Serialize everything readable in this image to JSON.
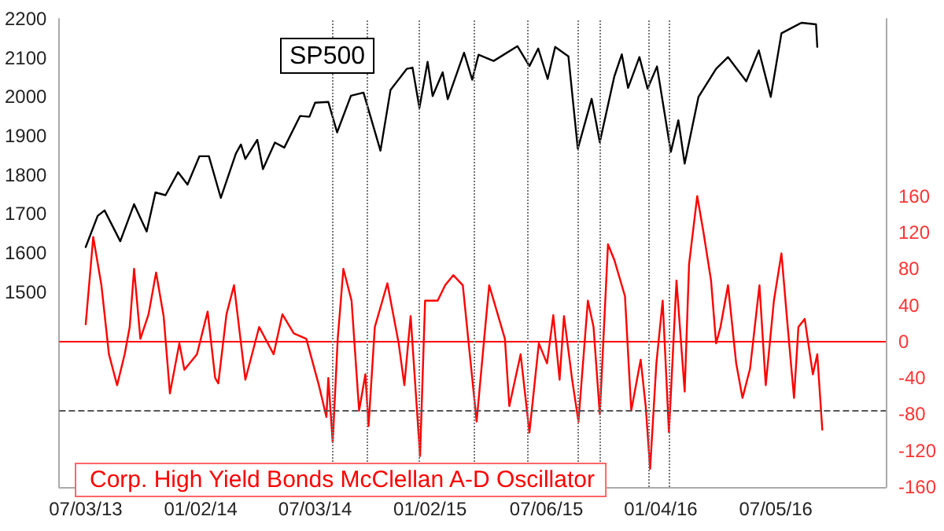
{
  "chart_data": {
    "type": "line",
    "xlim": [
      "2013-05-22",
      "2016-12-27"
    ],
    "xticks": [
      {
        "value": "2013-07-03",
        "label": "07/03/13"
      },
      {
        "value": "2014-01-02",
        "label": "01/02/14"
      },
      {
        "value": "2014-07-03",
        "label": "07/03/14"
      },
      {
        "value": "2015-01-02",
        "label": "01/02/15"
      },
      {
        "value": "2015-07-06",
        "label": "07/06/15"
      },
      {
        "value": "2016-01-04",
        "label": "01/04/16"
      },
      {
        "value": "2016-07-05",
        "label": "07/05/16"
      }
    ],
    "ylim": [
      1000,
      2200
    ],
    "yticks": [
      1500,
      1600,
      1700,
      1800,
      1900,
      2000,
      2100,
      2200
    ],
    "y2lim": [
      -160,
      355
    ],
    "y2ticks": [
      -160,
      -120,
      -80,
      -40,
      0,
      40,
      80,
      120,
      160
    ],
    "grid": false,
    "legend": "bottom left",
    "marker": "none",
    "line_style": "solid",
    "series": [
      {
        "name": "SP500",
        "color": "#000000",
        "x": [
          "2013-07-03",
          "2013-07-22",
          "2013-08-02",
          "2013-08-27",
          "2013-09-18",
          "2013-10-08",
          "2013-10-22",
          "2013-11-07",
          "2013-11-27",
          "2013-12-12",
          "2013-12-31",
          "2014-01-15",
          "2014-02-03",
          "2014-02-27",
          "2014-03-07",
          "2014-03-14",
          "2014-04-02",
          "2014-04-11",
          "2014-04-30",
          "2014-05-15",
          "2014-06-09",
          "2014-06-24",
          "2014-07-03",
          "2014-07-24",
          "2014-08-07",
          "2014-08-29",
          "2014-09-18",
          "2014-10-15",
          "2014-10-31",
          "2014-11-26",
          "2014-12-05",
          "2014-12-16",
          "2014-12-29",
          "2015-01-06",
          "2015-01-22",
          "2015-01-30",
          "2015-02-25",
          "2015-03-10",
          "2015-03-20",
          "2015-04-13",
          "2015-05-21",
          "2015-06-09",
          "2015-06-23",
          "2015-07-08",
          "2015-07-20",
          "2015-08-10",
          "2015-08-25",
          "2015-09-16",
          "2015-09-29",
          "2015-10-22",
          "2015-11-03",
          "2015-11-13",
          "2015-12-01",
          "2015-12-14",
          "2015-12-29",
          "2016-01-20",
          "2016-02-01",
          "2016-02-11",
          "2016-03-04",
          "2016-04-01",
          "2016-04-20",
          "2016-05-19",
          "2016-06-08",
          "2016-06-27",
          "2016-07-14",
          "2016-08-15",
          "2016-09-07",
          "2016-09-09"
        ],
        "values": [
          1615,
          1695,
          1709,
          1630,
          1725,
          1655,
          1755,
          1748,
          1807,
          1775,
          1848,
          1848,
          1741,
          1855,
          1878,
          1841,
          1890,
          1815,
          1883,
          1870,
          1951,
          1949,
          1985,
          1987,
          1909,
          2003,
          2011,
          1862,
          2018,
          2072,
          2075,
          1972,
          2090,
          2002,
          2063,
          1994,
          2113,
          2044,
          2108,
          2092,
          2130,
          2079,
          2124,
          2046,
          2128,
          2104,
          1867,
          1995,
          1884,
          2052,
          2109,
          2023,
          2102,
          2021,
          2078,
          1859,
          1940,
          1829,
          2000,
          2072,
          2102,
          2040,
          2119,
          2000,
          2163,
          2190,
          2186,
          2128
        ]
      },
      {
        "name": "Corp. High Yield Bonds McClellan A-D Oscillator",
        "color": "#ff0000",
        "axis": "y2",
        "x": [
          "2013-07-03",
          "2013-07-15",
          "2013-07-28",
          "2013-08-09",
          "2013-08-22",
          "2013-09-03",
          "2013-09-11",
          "2013-09-18",
          "2013-09-28",
          "2013-10-11",
          "2013-10-23",
          "2013-11-04",
          "2013-11-14",
          "2013-11-29",
          "2013-12-07",
          "2013-12-27",
          "2014-01-13",
          "2014-01-25",
          "2014-01-30",
          "2014-02-12",
          "2014-02-24",
          "2014-03-14",
          "2014-04-05",
          "2014-04-28",
          "2014-05-12",
          "2014-05-30",
          "2014-06-19",
          "2014-07-09",
          "2014-07-21",
          "2014-07-24",
          "2014-07-31",
          "2014-08-08",
          "2014-08-17",
          "2014-08-30",
          "2014-09-11",
          "2014-09-21",
          "2014-09-26",
          "2014-10-06",
          "2014-10-26",
          "2014-11-13",
          "2014-11-22",
          "2014-12-02",
          "2014-12-17",
          "2014-12-25",
          "2015-01-14",
          "2015-01-26",
          "2015-02-08",
          "2015-02-23",
          "2015-03-07",
          "2015-03-17",
          "2015-03-29",
          "2015-04-06",
          "2015-05-01",
          "2015-05-08",
          "2015-05-26",
          "2015-06-09",
          "2015-06-24",
          "2015-07-07",
          "2015-07-17",
          "2015-07-27",
          "2015-08-03",
          "2015-08-16",
          "2015-08-26",
          "2015-09-10",
          "2015-09-19",
          "2015-09-29",
          "2015-10-12",
          "2015-10-22",
          "2015-11-08",
          "2015-11-18",
          "2015-12-03",
          "2015-12-11",
          "2015-12-18",
          "2015-12-28",
          "2016-01-07",
          "2016-01-17",
          "2016-01-29",
          "2016-02-11",
          "2016-02-18",
          "2016-03-02",
          "2016-03-12",
          "2016-03-24",
          "2016-04-01",
          "2016-04-08",
          "2016-04-20",
          "2016-05-03",
          "2016-05-13",
          "2016-05-25",
          "2016-06-09",
          "2016-06-19",
          "2016-07-02",
          "2016-07-14",
          "2016-07-24",
          "2016-08-03",
          "2016-08-10",
          "2016-08-20",
          "2016-09-02",
          "2016-09-09",
          "2016-09-17"
        ],
        "values": [
          19,
          115,
          62,
          -14,
          -48,
          -14,
          16,
          80,
          3,
          30,
          76,
          28,
          -57,
          -2,
          -31,
          -14,
          33,
          -40,
          -46,
          30,
          62,
          -42,
          16,
          -14,
          30,
          9,
          3,
          -48,
          -83,
          -40,
          -111,
          3,
          80,
          45,
          -76,
          -36,
          -93,
          16,
          64,
          -2,
          -48,
          28,
          -126,
          45,
          45,
          62,
          73,
          62,
          -20,
          -88,
          3,
          62,
          3,
          -71,
          -14,
          -100,
          -2,
          -24,
          29,
          -42,
          28,
          -42,
          -88,
          45,
          16,
          -80,
          107,
          90,
          50,
          -76,
          -20,
          -71,
          -140,
          -24,
          45,
          -100,
          67,
          -55,
          85,
          160,
          120,
          67,
          -2,
          16,
          62,
          -24,
          -62,
          -30,
          62,
          -48,
          45,
          97,
          16,
          -62,
          16,
          25,
          -36,
          -14,
          -97
        ]
      }
    ],
    "ref_lines": [
      {
        "axis": "y2",
        "value": 0,
        "color": "#ff0000",
        "line_style": "solid"
      },
      {
        "axis": "y2",
        "value": -75,
        "color": "#555555",
        "line_style": "dashed"
      },
      {
        "axis": "x",
        "value": "2014-07-31",
        "color": "#777777",
        "line_style": "dotted"
      },
      {
        "axis": "x",
        "value": "2014-09-24",
        "color": "#777777",
        "line_style": "dotted"
      },
      {
        "axis": "x",
        "value": "2014-12-15",
        "color": "#777777",
        "line_style": "dotted"
      },
      {
        "axis": "x",
        "value": "2015-03-14",
        "color": "#777777",
        "line_style": "dotted"
      },
      {
        "axis": "x",
        "value": "2015-06-07",
        "color": "#777777",
        "line_style": "dotted"
      },
      {
        "axis": "x",
        "value": "2015-08-26",
        "color": "#777777",
        "line_style": "dotted"
      },
      {
        "axis": "x",
        "value": "2015-09-29",
        "color": "#777777",
        "line_style": "dotted"
      },
      {
        "axis": "x",
        "value": "2015-12-16",
        "color": "#777777",
        "line_style": "dotted"
      },
      {
        "axis": "x",
        "value": "2016-01-17",
        "color": "#777777",
        "line_style": "dotted"
      }
    ]
  }
}
